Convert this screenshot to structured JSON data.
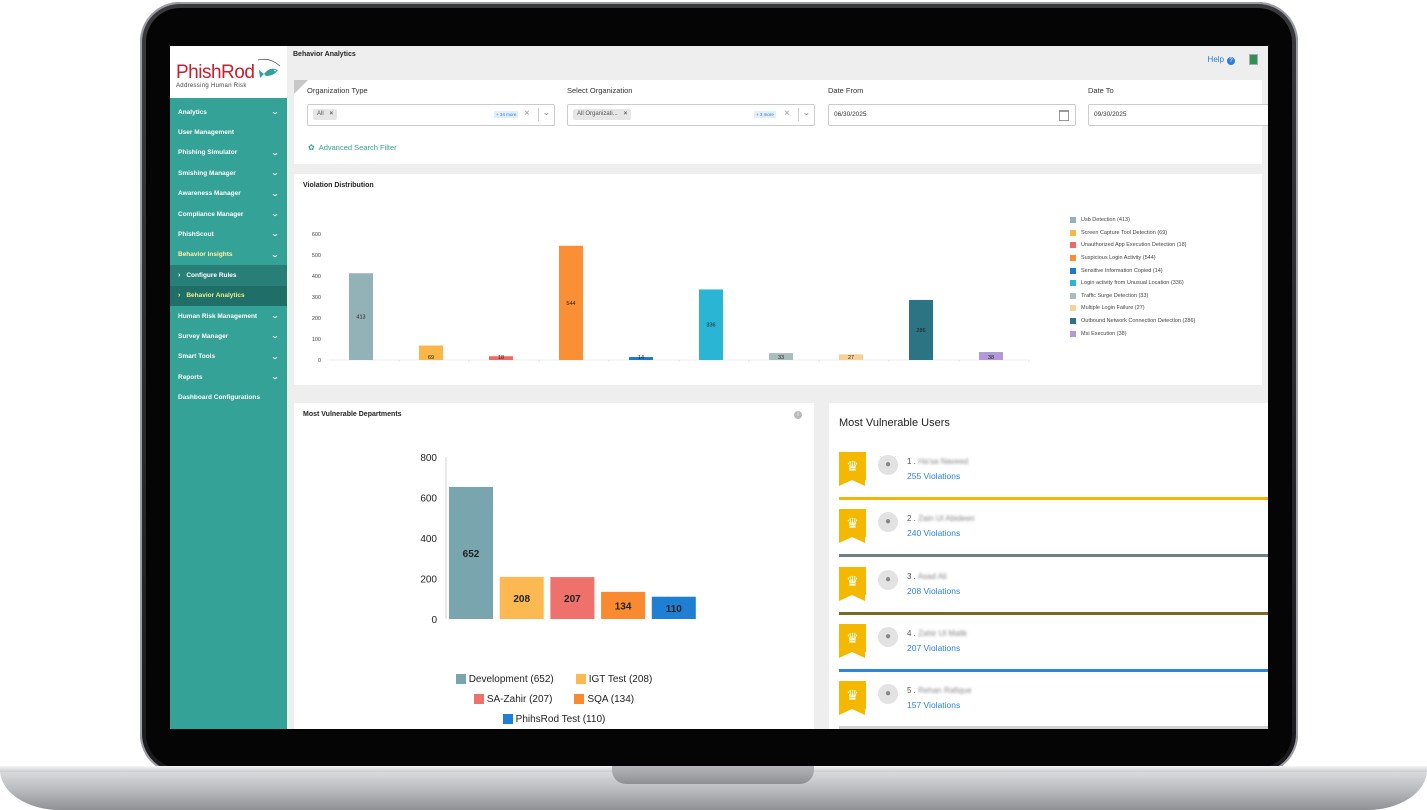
{
  "app": {
    "logo_name": "PhishRod",
    "logo_tagline": "Addressing Human Risk"
  },
  "sidebar": {
    "items": [
      {
        "label": "Analytics",
        "chevron": true
      },
      {
        "label": "User Management",
        "chevron": false
      },
      {
        "label": "Phishing Simulator",
        "chevron": true
      },
      {
        "label": "Smishing Manager",
        "chevron": true
      },
      {
        "label": "Awareness Manager",
        "chevron": true
      },
      {
        "label": "Compliance Manager",
        "chevron": true
      },
      {
        "label": "PhishScout",
        "chevron": true
      },
      {
        "label": "Behavior Insights",
        "chevron": true,
        "expanded": true
      },
      {
        "label": "Configure Rules",
        "sub": true
      },
      {
        "label": "Behavior Analytics",
        "sub": true,
        "current": true
      },
      {
        "label": "Human Risk Management",
        "chevron": true
      },
      {
        "label": "Survey Manager",
        "chevron": true
      },
      {
        "label": "Smart Tools",
        "chevron": true
      },
      {
        "label": "Reports",
        "chevron": true
      },
      {
        "label": "Dashboard Configurations",
        "chevron": false
      }
    ]
  },
  "header": {
    "title": "Behavior Analytics",
    "help_label": "Help",
    "help_icon": "?"
  },
  "filters": {
    "org_type_label": "Organization Type",
    "org_type_chip": "All",
    "org_type_more": "+ 34 more",
    "select_org_label": "Select Organization",
    "select_org_chip": "All Organizati...",
    "select_org_more": "+ 3 more",
    "date_from_label": "Date From",
    "date_from_value": "06/30/2025",
    "date_to_label": "Date To",
    "date_to_value": "09/30/2025",
    "advanced_search": "Advanced Search Filter"
  },
  "violation_chart": {
    "title": "Violation Distribution"
  },
  "departments_card": {
    "title": "Most Vulnerable Departments",
    "info_icon": "i"
  },
  "users_card": {
    "title": "Most Vulnerable Users",
    "users": [
      {
        "rank": "1 .",
        "name": "Ha'sa Naveed",
        "violations": "255 Violations",
        "line_color": "#f2b705"
      },
      {
        "rank": "2 .",
        "name": "Zain Ul Abideen",
        "violations": "240 Violations",
        "line_color": "#6f7f86"
      },
      {
        "rank": "3 .",
        "name": "Asad Ali",
        "violations": "208 Violations",
        "line_color": "#7a6a2a"
      },
      {
        "rank": "4 .",
        "name": "Zahir Ul Malik",
        "violations": "207 Violations",
        "line_color": "#2d86d9"
      },
      {
        "rank": "5 .",
        "name": "Rehan Rafique",
        "violations": "157 Violations",
        "line_color": "#d0d0d0"
      }
    ]
  },
  "chart_data": [
    {
      "type": "bar",
      "title": "Violation Distribution",
      "ylim": [
        0,
        600
      ],
      "yticks": [
        0,
        100,
        200,
        300,
        400,
        500,
        600
      ],
      "legend_position": "right",
      "categories": [
        "Usb Detection",
        "Screen Capture Tool Detection",
        "Unauthorized App Execution Detection",
        "Suspicious Login Activity",
        "Sensitive Information Copied",
        "Login activity from Unusual Location",
        "Traffic Surge Detection",
        "Multiple Login Failure",
        "Outbound Network Connection Detection",
        "Msi Execution"
      ],
      "legend_labels": [
        "Usb Detection (413)",
        "Screen Capture Tool Detection (69)",
        "Unauthorized App Execution Detection (18)",
        "Suspicious Login Activity (544)",
        "Sensitive Information Copied (14)",
        "Login activity from Unusual Location (336)",
        "Traffic Surge Detection (33)",
        "Multiple Login Failure (27)",
        "Outbound Network Connection Detection (286)",
        "Msi Execution (38)"
      ],
      "values": [
        413,
        69,
        18,
        544,
        14,
        336,
        33,
        27,
        286,
        38
      ],
      "value_labels": [
        "413",
        "69",
        "18",
        "544",
        "14",
        "336",
        "33",
        "27",
        "286",
        "38"
      ],
      "colors": [
        "#93b2b8",
        "#fbb64a",
        "#ee6a64",
        "#fa8f35",
        "#1b79cf",
        "#2bb5d4",
        "#a8bdbc",
        "#f8d196",
        "#2c7483",
        "#b19ad8"
      ]
    },
    {
      "type": "bar",
      "title": "Most Vulnerable Departments",
      "ylim": [
        0,
        800
      ],
      "yticks": [
        0,
        200,
        400,
        600,
        800
      ],
      "legend_position": "bottom",
      "categories": [
        "Development",
        "IGT Test",
        "SA-Zahir",
        "SQA",
        "PhihsRod Test"
      ],
      "legend_labels": [
        "Development (652)",
        "IGT Test (208)",
        "SA-Zahir (207)",
        "SQA (134)",
        "PhihsRod Test (110)"
      ],
      "values": [
        652,
        208,
        207,
        134,
        110
      ],
      "value_labels": [
        "652",
        "208",
        "207",
        "134",
        "110"
      ],
      "colors": [
        "#79a6ae",
        "#fcb851",
        "#ef716c",
        "#f98a2f",
        "#1f7fd2"
      ]
    }
  ]
}
